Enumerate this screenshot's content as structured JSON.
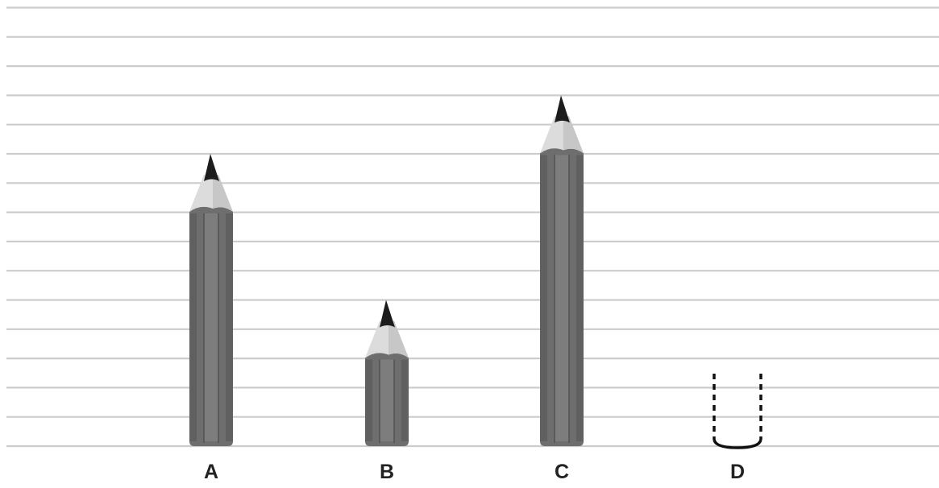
{
  "diagram": {
    "grid": "on",
    "pencils": [
      {
        "label": "A",
        "length": 10,
        "state": "shown"
      },
      {
        "label": "B",
        "length": 5,
        "state": "shown"
      },
      {
        "label": "C",
        "length": 12,
        "state": "shown"
      },
      {
        "label": "D",
        "length": null,
        "state": "empty-outline"
      }
    ],
    "colors": {
      "pencil_body": "#6e6e6e",
      "pencil_edge": "#555555",
      "pencil_highlight": "#8a8a8a",
      "wood": "#dcdcdc",
      "lead": "#1c1c1c",
      "grid_line": "#cccccc",
      "outline": "#111111"
    }
  }
}
